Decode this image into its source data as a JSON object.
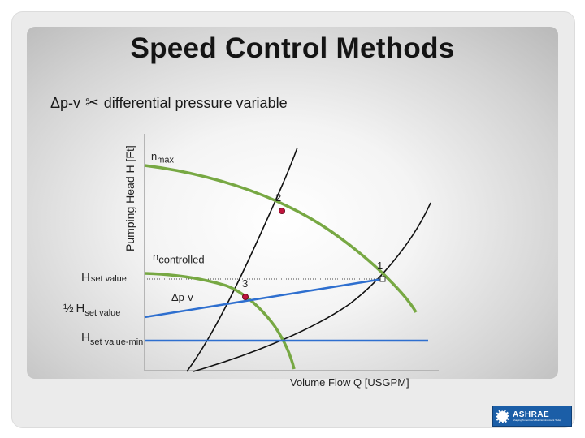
{
  "slide": {
    "title": "Speed Control Methods",
    "subtitle_prefix": "Δp-v",
    "subtitle_symbol": "✂",
    "subtitle_text": "differential pressure variable"
  },
  "diagram": {
    "y_axis_label": "Pumping Head H [Ft]",
    "x_axis_label": "Volume Flow Q [USGPM]",
    "curve_nmax": {
      "base": "n",
      "sub": "max"
    },
    "curve_ncontrolled": {
      "base": "n",
      "sub": "controlled"
    },
    "h_set_value": {
      "base": "H",
      "sub": "set value"
    },
    "half_h_set_value": {
      "prefix": "½",
      "base": "H",
      "sub": "set value"
    },
    "h_set_value_min": {
      "base": "H",
      "sub": "set value-min"
    },
    "control_line_label": "Δp-v",
    "point_1": "1",
    "point_2": "2",
    "point_3": "3",
    "colors": {
      "pump_curve": "#77a843",
      "control_line": "#2e6fcf",
      "point": "#c0143c",
      "system_curve": "#111111"
    }
  },
  "logo": {
    "brand": "ASHRAE",
    "tagline": "Shaping Tomorrow's Built Environment Today"
  }
}
